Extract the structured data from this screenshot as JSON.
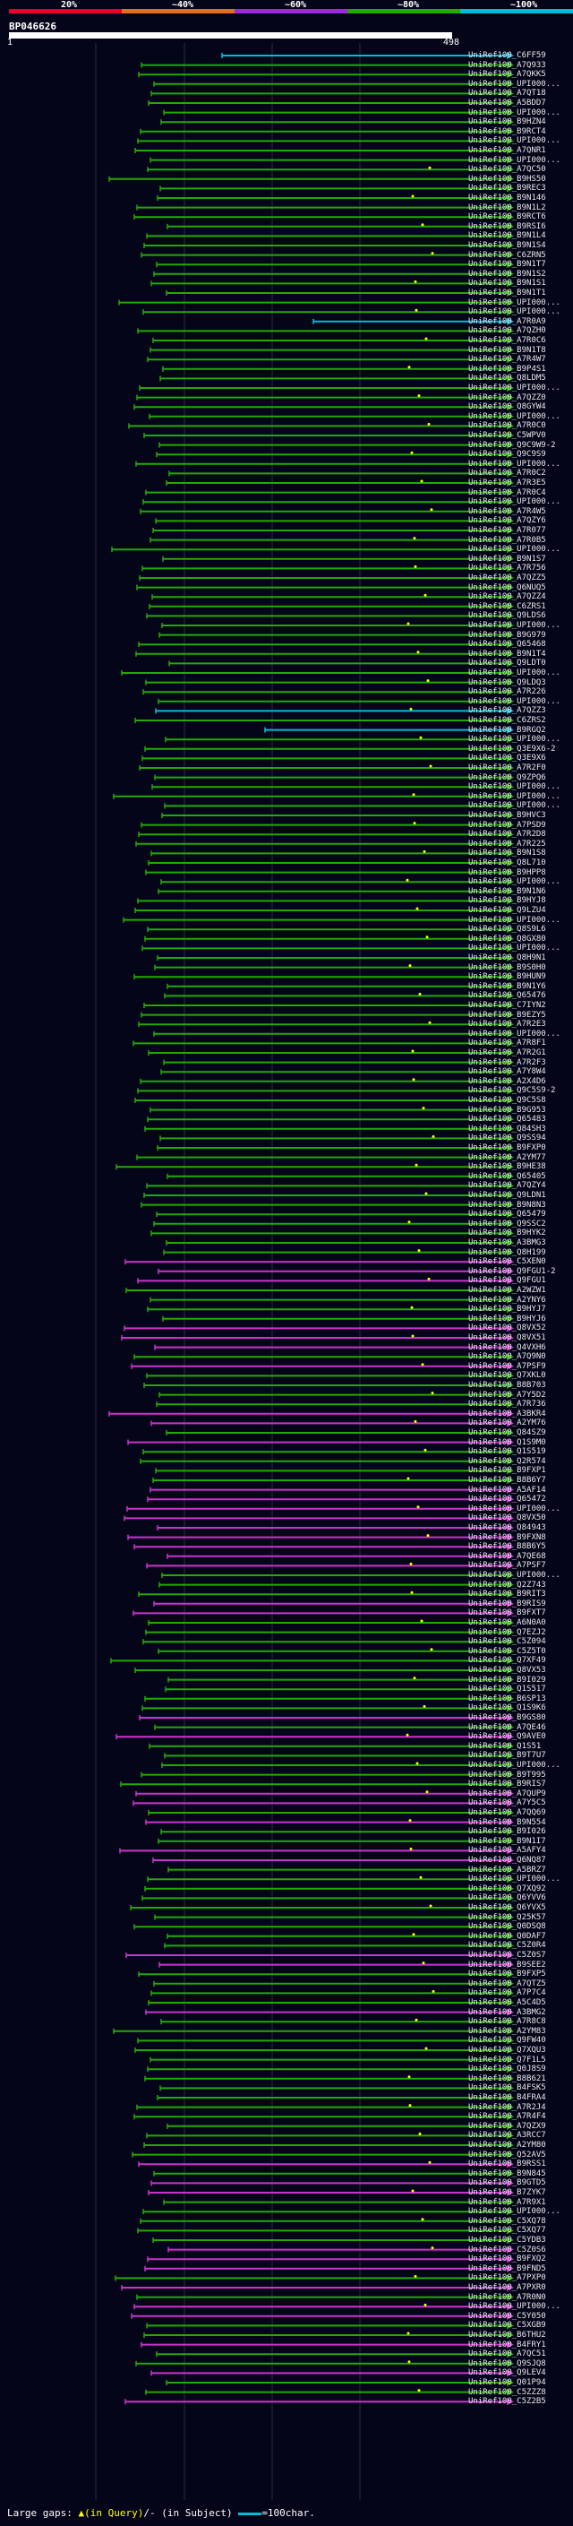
{
  "legend": {
    "labels": [
      "20%",
      "~40%",
      "~60%",
      "~80%",
      "~100%"
    ],
    "colors": [
      "#e8002b",
      "#e07020",
      "#9a2bd6",
      "#22aa00",
      "#00bcd4"
    ]
  },
  "query": {
    "id": "BP046626",
    "start": "1",
    "end": "498"
  },
  "hits": [
    {
      "label": "UniRef100_C6FF59",
      "color": "#00bcd4"
    },
    {
      "label": "UniRef100_A7Q933",
      "color": "#22aa00"
    },
    {
      "label": "UniRef100_A7QKK5",
      "color": "#22aa00"
    },
    {
      "label": "UniRef100_UPI000...",
      "color": "#22aa00"
    },
    {
      "label": "UniRef100_A7QT18",
      "color": "#22aa00"
    },
    {
      "label": "UniRef100_A5BDD7",
      "color": "#22aa00"
    },
    {
      "label": "UniRef100_UPI000...",
      "color": "#22aa00"
    },
    {
      "label": "UniRef100_B9HZN4",
      "color": "#22aa00"
    },
    {
      "label": "UniRef100_B9RCT4",
      "color": "#22aa00"
    },
    {
      "label": "UniRef100_UPI000...",
      "color": "#22aa00"
    },
    {
      "label": "UniRef100_A7QNR1",
      "color": "#22aa00"
    },
    {
      "label": "UniRef100_UPI000...",
      "color": "#22aa00"
    },
    {
      "label": "UniRef100_A7QC50",
      "color": "#22aa00"
    },
    {
      "label": "UniRef100_B9HS50",
      "color": "#22aa00"
    },
    {
      "label": "UniRef100_B9REC3",
      "color": "#22aa00"
    },
    {
      "label": "UniRef100_B9N146",
      "color": "#22aa00"
    },
    {
      "label": "UniRef100_B9N1L2",
      "color": "#22aa00"
    },
    {
      "label": "UniRef100_B9RCT6",
      "color": "#22aa00"
    },
    {
      "label": "UniRef100_B9RSI6",
      "color": "#22aa00"
    },
    {
      "label": "UniRef100_B9N1L4",
      "color": "#22aa00"
    },
    {
      "label": "UniRef100_B9N1S4",
      "color": "#22aa00"
    },
    {
      "label": "UniRef100_C6ZRN5",
      "color": "#22aa00"
    },
    {
      "label": "UniRef100_B9N1T7",
      "color": "#22aa00"
    },
    {
      "label": "UniRef100_B9N1S2",
      "color": "#22aa00"
    },
    {
      "label": "UniRef100_B9N1S1",
      "color": "#22aa00"
    },
    {
      "label": "UniRef100_B9N1T1",
      "color": "#22aa00"
    },
    {
      "label": "UniRef100_UPI000...",
      "color": "#22aa00"
    },
    {
      "label": "UniRef100_UPI000...",
      "color": "#22aa00"
    },
    {
      "label": "UniRef100_A7R0A9",
      "color": "#00bcd4"
    },
    {
      "label": "UniRef100_A7QZH0",
      "color": "#22aa00"
    },
    {
      "label": "UniRef100_A7R0C6",
      "color": "#22aa00"
    },
    {
      "label": "UniRef100_B9N1T8",
      "color": "#22aa00"
    },
    {
      "label": "UniRef100_A7R4W7",
      "color": "#22aa00"
    },
    {
      "label": "UniRef100_B9P4S1",
      "color": "#22aa00"
    },
    {
      "label": "UniRef100_Q8LDM5",
      "color": "#22aa00"
    },
    {
      "label": "UniRef100_UPI000...",
      "color": "#22aa00"
    },
    {
      "label": "UniRef100_A7QZZ0",
      "color": "#22aa00"
    },
    {
      "label": "UniRef100_Q8GYW4",
      "color": "#22aa00"
    },
    {
      "label": "UniRef100_UPI000...",
      "color": "#22aa00"
    },
    {
      "label": "UniRef100_A7R0C0",
      "color": "#22aa00"
    },
    {
      "label": "UniRef100_C5WPV0",
      "color": "#22aa00"
    },
    {
      "label": "UniRef100_Q9C9W9-2",
      "color": "#22aa00"
    },
    {
      "label": "UniRef100_Q9C9S9",
      "color": "#22aa00"
    },
    {
      "label": "UniRef100_UPI000...",
      "color": "#22aa00"
    },
    {
      "label": "UniRef100_A7R0C2",
      "color": "#22aa00"
    },
    {
      "label": "UniRef100_A7R3E5",
      "color": "#22aa00"
    },
    {
      "label": "UniRef100_A7R0C4",
      "color": "#22aa00"
    },
    {
      "label": "UniRef100_UPI000...",
      "color": "#22aa00"
    },
    {
      "label": "UniRef100_A7R4W5",
      "color": "#22aa00"
    },
    {
      "label": "UniRef100_A7QZY6",
      "color": "#22aa00"
    },
    {
      "label": "UniRef100_A7R077",
      "color": "#22aa00"
    },
    {
      "label": "UniRef100_A7R0B5",
      "color": "#22aa00"
    },
    {
      "label": "UniRef100_UPI000...",
      "color": "#22aa00"
    },
    {
      "label": "UniRef100_B9N1S7",
      "color": "#22aa00"
    },
    {
      "label": "UniRef100_A7R756",
      "color": "#22aa00"
    },
    {
      "label": "UniRef100_A7QZZ5",
      "color": "#22aa00"
    },
    {
      "label": "UniRef100_Q6NUQ5",
      "color": "#22aa00"
    },
    {
      "label": "UniRef100_A7QZZ4",
      "color": "#22aa00"
    },
    {
      "label": "UniRef100_C6ZRS1",
      "color": "#22aa00"
    },
    {
      "label": "UniRef100_Q9LDS6",
      "color": "#22aa00"
    },
    {
      "label": "UniRef100_UPI000...",
      "color": "#22aa00"
    },
    {
      "label": "UniRef100_B9G979",
      "color": "#22aa00"
    },
    {
      "label": "UniRef100_Q65468",
      "color": "#22aa00"
    },
    {
      "label": "UniRef100_B9N1T4",
      "color": "#22aa00"
    },
    {
      "label": "UniRef100_Q9LDT0",
      "color": "#22aa00"
    },
    {
      "label": "UniRef100_UPI000...",
      "color": "#22aa00"
    },
    {
      "label": "UniRef100_Q9LDQ3",
      "color": "#22aa00"
    },
    {
      "label": "UniRef100_A7R226",
      "color": "#22aa00"
    },
    {
      "label": "UniRef100_UPI000...",
      "color": "#22aa00"
    },
    {
      "label": "UniRef100_A7QZZ3",
      "color": "#00bcd4"
    },
    {
      "label": "UniRef100_C6ZRS2",
      "color": "#22aa00"
    },
    {
      "label": "UniRef100_B9RGQ2",
      "color": "#00bcd4"
    },
    {
      "label": "UniRef100_UPI000...",
      "color": "#22aa00"
    },
    {
      "label": "UniRef100_Q3E9X6-2",
      "color": "#22aa00"
    },
    {
      "label": "UniRef100_Q3E9X6",
      "color": "#22aa00"
    },
    {
      "label": "UniRef100_A7R2F0",
      "color": "#22aa00"
    },
    {
      "label": "UniRef100_Q9ZPQ6",
      "color": "#22aa00"
    },
    {
      "label": "UniRef100_UPI000...",
      "color": "#22aa00"
    },
    {
      "label": "UniRef100_UPI000...",
      "color": "#22aa00"
    },
    {
      "label": "UniRef100_UPI000...",
      "color": "#22aa00"
    },
    {
      "label": "UniRef100_B9HVC3",
      "color": "#22aa00"
    },
    {
      "label": "UniRef100_A7PSD9",
      "color": "#22aa00"
    },
    {
      "label": "UniRef100_A7R2D8",
      "color": "#22aa00"
    },
    {
      "label": "UniRef100_A7R225",
      "color": "#22aa00"
    },
    {
      "label": "UniRef100_B9N1S8",
      "color": "#22aa00"
    },
    {
      "label": "UniRef100_Q8L710",
      "color": "#22aa00"
    },
    {
      "label": "UniRef100_B9HPP8",
      "color": "#22aa00"
    },
    {
      "label": "UniRef100_UPI000...",
      "color": "#22aa00"
    },
    {
      "label": "UniRef100_B9N1N6",
      "color": "#22aa00"
    },
    {
      "label": "UniRef100_B9HYJ8",
      "color": "#22aa00"
    },
    {
      "label": "UniRef100_Q9LZU4",
      "color": "#22aa00"
    },
    {
      "label": "UniRef100_UPI000...",
      "color": "#22aa00"
    },
    {
      "label": "UniRef100_Q8S9L6",
      "color": "#22aa00"
    },
    {
      "label": "UniRef100_Q8GX80",
      "color": "#22aa00"
    },
    {
      "label": "UniRef100_UPI000...",
      "color": "#22aa00"
    },
    {
      "label": "UniRef100_Q8H9N1",
      "color": "#22aa00"
    },
    {
      "label": "UniRef100_B9S0H0",
      "color": "#22aa00"
    },
    {
      "label": "UniRef100_B9HUN9",
      "color": "#22aa00"
    },
    {
      "label": "UniRef100_B9N1Y6",
      "color": "#22aa00"
    },
    {
      "label": "UniRef100_Q65476",
      "color": "#22aa00"
    },
    {
      "label": "UniRef100_C7IYN2",
      "color": "#22aa00"
    },
    {
      "label": "UniRef100_B9EZY5",
      "color": "#22aa00"
    },
    {
      "label": "UniRef100_A7R2E3",
      "color": "#22aa00"
    },
    {
      "label": "UniRef100_UPI000...",
      "color": "#22aa00"
    },
    {
      "label": "UniRef100_A7R8F1",
      "color": "#22aa00"
    },
    {
      "label": "UniRef100_A7R2G1",
      "color": "#22aa00"
    },
    {
      "label": "UniRef100_A7R2F3",
      "color": "#22aa00"
    },
    {
      "label": "UniRef100_A7Y8W4",
      "color": "#22aa00"
    },
    {
      "label": "UniRef100_A2X4D6",
      "color": "#22aa00"
    },
    {
      "label": "UniRef100_Q9C5S9-2",
      "color": "#22aa00"
    },
    {
      "label": "UniRef100_Q9C5S8",
      "color": "#22aa00"
    },
    {
      "label": "UniRef100_B9G953",
      "color": "#22aa00"
    },
    {
      "label": "UniRef100_Q65483",
      "color": "#22aa00"
    },
    {
      "label": "UniRef100_Q84SH3",
      "color": "#22aa00"
    },
    {
      "label": "UniRef100_Q9SS94",
      "color": "#22aa00"
    },
    {
      "label": "UniRef100_B9FXP0",
      "color": "#22aa00"
    },
    {
      "label": "UniRef100_A2YM77",
      "color": "#22aa00"
    },
    {
      "label": "UniRef100_B9HE38",
      "color": "#22aa00"
    },
    {
      "label": "UniRef100_Q65405",
      "color": "#22aa00"
    },
    {
      "label": "UniRef100_A7QZY4",
      "color": "#22aa00"
    },
    {
      "label": "UniRef100_Q9LDN1",
      "color": "#22aa00"
    },
    {
      "label": "UniRef100_B9N8N3",
      "color": "#22aa00"
    },
    {
      "label": "UniRef100_Q65479",
      "color": "#22aa00"
    },
    {
      "label": "UniRef100_Q9SSC2",
      "color": "#22aa00"
    },
    {
      "label": "UniRef100_B9HYK2",
      "color": "#22aa00"
    },
    {
      "label": "UniRef100_A3BMG3",
      "color": "#22aa00"
    },
    {
      "label": "UniRef100_Q8H199",
      "color": "#22aa00"
    },
    {
      "label": "UniRef100_C5XEN0",
      "color": "#cc33cc"
    },
    {
      "label": "UniRef100_Q9FGU1-2",
      "color": "#cc33cc"
    },
    {
      "label": "UniRef100_Q9FGU1",
      "color": "#cc33cc"
    },
    {
      "label": "UniRef100_A2WZW1",
      "color": "#22aa00"
    },
    {
      "label": "UniRef100_A2YNY6",
      "color": "#22aa00"
    },
    {
      "label": "UniRef100_B9HYJ7",
      "color": "#22aa00"
    },
    {
      "label": "UniRef100_B9HYJ6",
      "color": "#22aa00"
    },
    {
      "label": "UniRef100_Q8VX52",
      "color": "#cc33cc"
    },
    {
      "label": "UniRef100_Q8VX51",
      "color": "#cc33cc"
    },
    {
      "label": "UniRef100_Q4VXH6",
      "color": "#cc33cc"
    },
    {
      "label": "UniRef100_A7Q9N0",
      "color": "#22aa00"
    },
    {
      "label": "UniRef100_A7PSF9",
      "color": "#cc33cc"
    },
    {
      "label": "UniRef100_Q7XKL0",
      "color": "#22aa00"
    },
    {
      "label": "UniRef100_B8B703",
      "color": "#22aa00"
    },
    {
      "label": "UniRef100_A7Y5D2",
      "color": "#22aa00"
    },
    {
      "label": "UniRef100_A7R736",
      "color": "#22aa00"
    },
    {
      "label": "UniRef100_A3BKR4",
      "color": "#cc33cc"
    },
    {
      "label": "UniRef100_A2YM76",
      "color": "#cc33cc"
    },
    {
      "label": "UniRef100_Q84SZ9",
      "color": "#22aa00"
    },
    {
      "label": "UniRef100_Q1S9M0",
      "color": "#cc33cc"
    },
    {
      "label": "UniRef100_Q1S519",
      "color": "#22aa00"
    },
    {
      "label": "UniRef100_Q2R574",
      "color": "#22aa00"
    },
    {
      "label": "UniRef100_B9FXP1",
      "color": "#22aa00"
    },
    {
      "label": "UniRef100_B8B6Y7",
      "color": "#22aa00"
    },
    {
      "label": "UniRef100_A5AF14",
      "color": "#cc33cc"
    },
    {
      "label": "UniRef100_Q65472",
      "color": "#cc33cc"
    },
    {
      "label": "UniRef100_UPI000...",
      "color": "#cc33cc"
    },
    {
      "label": "UniRef100_Q8VX50",
      "color": "#cc33cc"
    },
    {
      "label": "UniRef100_Q84943",
      "color": "#cc33cc"
    },
    {
      "label": "UniRef100_B9FXN8",
      "color": "#cc33cc"
    },
    {
      "label": "UniRef100_B8B6Y5",
      "color": "#cc33cc"
    },
    {
      "label": "UniRef100_A7QE68",
      "color": "#cc33cc"
    },
    {
      "label": "UniRef100_A7PSF7",
      "color": "#cc33cc"
    },
    {
      "label": "UniRef100_UPI000...",
      "color": "#22aa00"
    },
    {
      "label": "UniRef100_Q2Z743",
      "color": "#22aa00"
    },
    {
      "label": "UniRef100_B9RIT3",
      "color": "#22aa00"
    },
    {
      "label": "UniRef100_B9RIS9",
      "color": "#cc33cc"
    },
    {
      "label": "UniRef100_B9FXT7",
      "color": "#cc33cc"
    },
    {
      "label": "UniRef100_A6N0A0",
      "color": "#22aa00"
    },
    {
      "label": "UniRef100_Q7EZJ2",
      "color": "#22aa00"
    },
    {
      "label": "UniRef100_C5Z094",
      "color": "#22aa00"
    },
    {
      "label": "UniRef100_C5Z5T0",
      "color": "#22aa00"
    },
    {
      "label": "UniRef100_Q7XF49",
      "color": "#22aa00"
    },
    {
      "label": "UniRef100_Q8VX53",
      "color": "#22aa00"
    },
    {
      "label": "UniRef100_B9I029",
      "color": "#22aa00"
    },
    {
      "label": "UniRef100_Q1S517",
      "color": "#22aa00"
    },
    {
      "label": "UniRef100_B6SP13",
      "color": "#22aa00"
    },
    {
      "label": "UniRef100_Q1S9K6",
      "color": "#22aa00"
    },
    {
      "label": "UniRef100_B9GS80",
      "color": "#cc33cc"
    },
    {
      "label": "UniRef100_A7QE46",
      "color": "#22aa00"
    },
    {
      "label": "UniRef100_Q9AVE0",
      "color": "#cc33cc"
    },
    {
      "label": "UniRef100_Q1S51",
      "color": "#22aa00"
    },
    {
      "label": "UniRef100_B9T7U7",
      "color": "#22aa00"
    },
    {
      "label": "UniRef100_UPI000...",
      "color": "#22aa00"
    },
    {
      "label": "UniRef100_B9T995",
      "color": "#22aa00"
    },
    {
      "label": "UniRef100_B9RIS7",
      "color": "#22aa00"
    },
    {
      "label": "UniRef100_A7QUP9",
      "color": "#cc33cc"
    },
    {
      "label": "UniRef100_A7Y5C5",
      "color": "#cc33cc"
    },
    {
      "label": "UniRef100_A7QQ69",
      "color": "#22aa00"
    },
    {
      "label": "UniRef100_B9N554",
      "color": "#cc33cc"
    },
    {
      "label": "UniRef100_B9I026",
      "color": "#22aa00"
    },
    {
      "label": "UniRef100_B9N1I7",
      "color": "#22aa00"
    },
    {
      "label": "UniRef100_A5AFY4",
      "color": "#cc33cc"
    },
    {
      "label": "UniRef100_Q6NQ87",
      "color": "#cc33cc"
    },
    {
      "label": "UniRef100_A5BRZ7",
      "color": "#22aa00"
    },
    {
      "label": "UniRef100_UPI000...",
      "color": "#22aa00"
    },
    {
      "label": "UniRef100_Q7XQ92",
      "color": "#22aa00"
    },
    {
      "label": "UniRef100_Q6YVV6",
      "color": "#22aa00"
    },
    {
      "label": "UniRef100_Q6YVX5",
      "color": "#22aa00"
    },
    {
      "label": "UniRef100_Q25K57",
      "color": "#22aa00"
    },
    {
      "label": "UniRef100_Q0DSQ8",
      "color": "#22aa00"
    },
    {
      "label": "UniRef100_Q0DAF7",
      "color": "#22aa00"
    },
    {
      "label": "UniRef100_C5Z0R4",
      "color": "#22aa00"
    },
    {
      "label": "UniRef100_C5Z0S7",
      "color": "#cc33cc"
    },
    {
      "label": "UniRef100_B9SEE2",
      "color": "#cc33cc"
    },
    {
      "label": "UniRef100_B9FXP5",
      "color": "#22aa00"
    },
    {
      "label": "UniRef100_A7QTZ5",
      "color": "#22aa00"
    },
    {
      "label": "UniRef100_A7P7C4",
      "color": "#22aa00"
    },
    {
      "label": "UniRef100_A5C4D5",
      "color": "#22aa00"
    },
    {
      "label": "UniRef100_A3BMG2",
      "color": "#cc33cc"
    },
    {
      "label": "UniRef100_A7R8C8",
      "color": "#22aa00"
    },
    {
      "label": "UniRef100_A2YM83",
      "color": "#22aa00"
    },
    {
      "label": "UniRef100_Q9FW40",
      "color": "#22aa00"
    },
    {
      "label": "UniRef100_Q7XQU3",
      "color": "#22aa00"
    },
    {
      "label": "UniRef100_Q7F1L5",
      "color": "#22aa00"
    },
    {
      "label": "UniRef100_Q0J8S9",
      "color": "#22aa00"
    },
    {
      "label": "UniRef100_B8B621",
      "color": "#22aa00"
    },
    {
      "label": "UniRef100_B4FSK5",
      "color": "#22aa00"
    },
    {
      "label": "UniRef100_B4FRA4",
      "color": "#22aa00"
    },
    {
      "label": "UniRef100_A7R2J4",
      "color": "#22aa00"
    },
    {
      "label": "UniRef100_A7R4F4",
      "color": "#22aa00"
    },
    {
      "label": "UniRef100_A7QZX9",
      "color": "#22aa00"
    },
    {
      "label": "UniRef100_A3RCC7",
      "color": "#22aa00"
    },
    {
      "label": "UniRef100_A2YM80",
      "color": "#22aa00"
    },
    {
      "label": "UniRef100_Q52AV5",
      "color": "#22aa00"
    },
    {
      "label": "UniRef100_B9RSS1",
      "color": "#cc33cc"
    },
    {
      "label": "UniRef100_B9N845",
      "color": "#22aa00"
    },
    {
      "label": "UniRef100_B9GTD5",
      "color": "#cc33cc"
    },
    {
      "label": "UniRef100_B7ZYK7",
      "color": "#cc33cc"
    },
    {
      "label": "UniRef100_A7R9X1",
      "color": "#22aa00"
    },
    {
      "label": "UniRef100_UPI000...",
      "color": "#22aa00"
    },
    {
      "label": "UniRef100_C5XQ78",
      "color": "#22aa00"
    },
    {
      "label": "UniRef100_C5XQ77",
      "color": "#22aa00"
    },
    {
      "label": "UniRef100_C5YDB3",
      "color": "#22aa00"
    },
    {
      "label": "UniRef100_C5Z0S6",
      "color": "#cc33cc"
    },
    {
      "label": "UniRef100_B9FXQ2",
      "color": "#cc33cc"
    },
    {
      "label": "UniRef100_B9FND5",
      "color": "#cc33cc"
    },
    {
      "label": "UniRef100_A7PXP0",
      "color": "#22aa00"
    },
    {
      "label": "UniRef100_A7PXR0",
      "color": "#cc33cc"
    },
    {
      "label": "UniRef100_A7R0N0",
      "color": "#22aa00"
    },
    {
      "label": "UniRef100_UPI000...",
      "color": "#cc33cc"
    },
    {
      "label": "UniRef100_C5Y050",
      "color": "#cc33cc"
    },
    {
      "label": "UniRef100_C5XGB9",
      "color": "#22aa00"
    },
    {
      "label": "UniRef100_B6THU2",
      "color": "#22aa00"
    },
    {
      "label": "UniRef100_B4FRY1",
      "color": "#cc33cc"
    },
    {
      "label": "UniRef100_A7QC51",
      "color": "#22aa00"
    },
    {
      "label": "UniRef100_Q9SJQ8",
      "color": "#22aa00"
    },
    {
      "label": "UniRef100_Q9LEV4",
      "color": "#cc33cc"
    },
    {
      "label": "UniRef100_Q01P94",
      "color": "#22aa00"
    },
    {
      "label": "UniRef100_C5ZZZ8",
      "color": "#22aa00"
    },
    {
      "label": "UniRef100_C5Z2B5",
      "color": "#cc33cc"
    }
  ],
  "footer": {
    "text": "Large gaps: ",
    "query_gap": "▲(in Query)",
    "subject_gap": "/- (in Subject)",
    "scale_text": "=100char."
  }
}
